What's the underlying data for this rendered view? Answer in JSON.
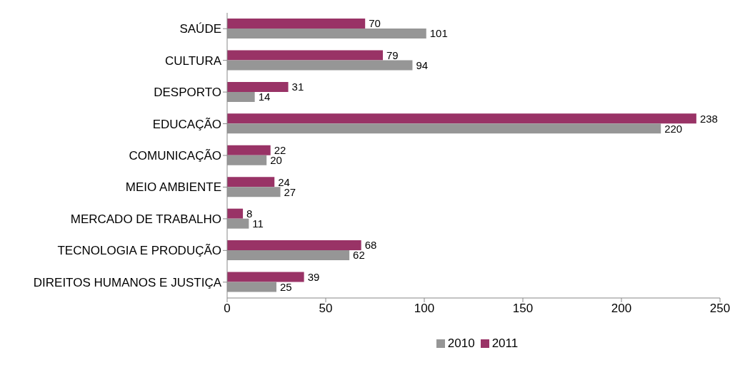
{
  "chart_data": {
    "type": "bar",
    "orientation": "horizontal",
    "categories": [
      "SAÚDE",
      "CULTURA",
      "DESPORTO",
      "EDUCAÇÃO",
      "COMUNICAÇÃO",
      "MEIO AMBIENTE",
      "MERCADO DE TRABALHO",
      "TECNOLOGIA E PRODUÇÃO",
      "DIREITOS HUMANOS E JUSTIÇA"
    ],
    "series": [
      {
        "name": "2010",
        "color": "#969696",
        "values": [
          101,
          94,
          14,
          220,
          20,
          27,
          11,
          62,
          25
        ]
      },
      {
        "name": "2011",
        "color": "#993366",
        "values": [
          70,
          79,
          31,
          238,
          22,
          24,
          8,
          68,
          39
        ]
      }
    ],
    "xlim": [
      0,
      250
    ],
    "xticks": [
      0,
      50,
      100,
      150,
      200,
      250
    ],
    "data_labels": true,
    "grid": false,
    "legend": "bottom"
  }
}
